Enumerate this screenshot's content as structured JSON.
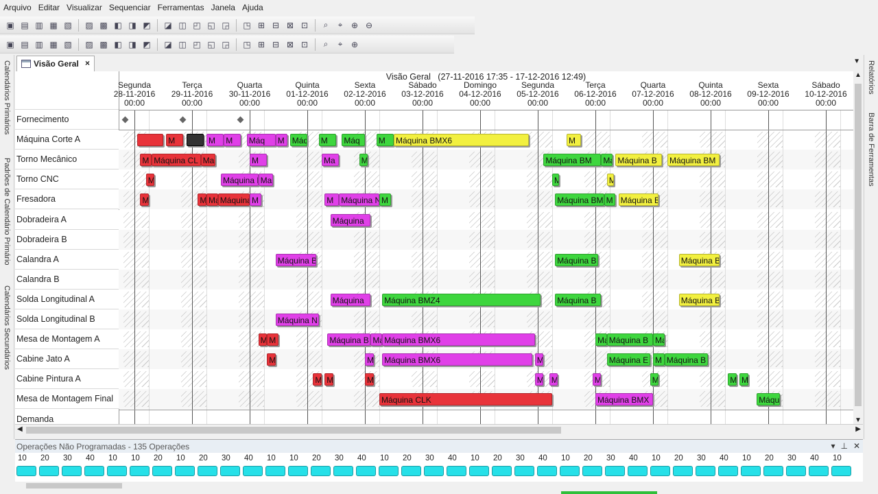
{
  "menu": [
    "Arquivo",
    "Editar",
    "Visualizar",
    "Sequenciar",
    "Ferramentas",
    "Janela",
    "Ajuda"
  ],
  "toolbar1": [
    "open-icon",
    "paste-icon",
    "save-icon",
    "print-icon",
    "check-icon",
    "undo-icon",
    "redo-icon",
    "grid-icon",
    "table-icon",
    "chart-icon",
    "list-icon",
    "report-icon",
    "window-icon",
    "move-icon",
    "move2-icon",
    "binoculars-icon",
    "help-icon",
    "doc-icon",
    "calendar-icon",
    "calendar2-icon",
    "zoom-in-icon",
    "zoom-out-icon",
    "zoom-fit-icon",
    "zoom-time-icon"
  ],
  "toolbar2": [
    "tool1-icon",
    "tool2-icon",
    "tool3-icon",
    "tool4-icon",
    "tool5-icon",
    "tool6-icon",
    "bar-icon",
    "arrows-icon",
    "box-icon",
    "arrow-right-icon",
    "cursor-icon",
    "cursor2-icon",
    "wand-icon",
    "layers-icon",
    "layers2-icon",
    "book-icon",
    "link-icon",
    "check2-icon",
    "list2-icon",
    "page-icon",
    "lock-icon",
    "copy-icon",
    "copy2-icon"
  ],
  "left_tabs": [
    "Calendários Primários",
    "Padrões de Calendário Primário",
    "Calendários Secundários"
  ],
  "right_tabs": [
    "Relatórios",
    "Barra de Ferramentas"
  ],
  "doc_tab": {
    "label": "Visão Geral",
    "close": "×"
  },
  "header": {
    "title": "Visão Geral",
    "range": "(27-11-2016 17:35 - 17-12-2016 12:49)"
  },
  "days": [
    {
      "name": "Segunda",
      "date": "28-11-2016",
      "time": "00:00"
    },
    {
      "name": "Terça",
      "date": "29-11-2016",
      "time": "00:00"
    },
    {
      "name": "Quarta",
      "date": "30-11-2016",
      "time": "00:00"
    },
    {
      "name": "Quinta",
      "date": "01-12-2016",
      "time": "00:00"
    },
    {
      "name": "Sexta",
      "date": "02-12-2016",
      "time": "00:00"
    },
    {
      "name": "Sábado",
      "date": "03-12-2016",
      "time": "00:00"
    },
    {
      "name": "Domingo",
      "date": "04-12-2016",
      "time": "00:00"
    },
    {
      "name": "Segunda",
      "date": "05-12-2016",
      "time": "00:00"
    },
    {
      "name": "Terça",
      "date": "06-12-2016",
      "time": "00:00"
    },
    {
      "name": "Quarta",
      "date": "07-12-2016",
      "time": "00:00"
    },
    {
      "name": "Quinta",
      "date": "08-12-2016",
      "time": "00:00"
    },
    {
      "name": "Sexta",
      "date": "09-12-2016",
      "time": "00:00"
    },
    {
      "name": "Sábado",
      "date": "10-12-2016",
      "time": "00:00"
    }
  ],
  "resources": [
    "Fornecimento",
    "Máquina Corte A",
    "Torno Mecânico",
    "Torno CNC",
    "Fresadora",
    "Dobradeira A",
    "Dobradeira B",
    "Calandra A",
    "Calandra B",
    "Solda Longitudinal A",
    "Solda Longitudinal B",
    "Mesa de Montagem A",
    "Cabine Jato A",
    "Cabine Pintura A",
    "Mesa de Montagem Final",
    "Demanda"
  ],
  "colors": {
    "red": "#e8333a",
    "magenta": "#e040e8",
    "green": "#3ed63e",
    "yellow": "#f2f040",
    "dark": "#333333"
  },
  "bars": [
    {
      "row": 1,
      "day": 0.55,
      "len": 0.45,
      "color": "red",
      "label": ""
    },
    {
      "row": 1,
      "day": 1.05,
      "len": 0.3,
      "color": "red",
      "label": "M"
    },
    {
      "row": 1,
      "day": 1.4,
      "len": 0.3,
      "color": "dark",
      "label": ""
    },
    {
      "row": 1,
      "day": 1.75,
      "len": 0.3,
      "color": "magenta",
      "label": "M"
    },
    {
      "row": 1,
      "day": 2.05,
      "len": 0.3,
      "color": "magenta",
      "label": "M"
    },
    {
      "row": 1,
      "day": 2.45,
      "len": 0.5,
      "color": "magenta",
      "label": "Máq"
    },
    {
      "row": 1,
      "day": 2.95,
      "len": 0.2,
      "color": "magenta",
      "label": "M"
    },
    {
      "row": 1,
      "day": 3.2,
      "len": 0.3,
      "color": "green",
      "label": "Máq"
    },
    {
      "row": 1,
      "day": 3.7,
      "len": 0.3,
      "color": "green",
      "label": "M"
    },
    {
      "row": 1,
      "day": 4.1,
      "len": 0.4,
      "color": "green",
      "label": "Máq"
    },
    {
      "row": 1,
      "day": 4.7,
      "len": 0.3,
      "color": "green",
      "label": "M"
    },
    {
      "row": 1,
      "day": 5.0,
      "len": 2.35,
      "color": "yellow",
      "label": "Máquina BMX6"
    },
    {
      "row": 1,
      "day": 8.0,
      "len": 0.25,
      "color": "yellow",
      "label": "M"
    },
    {
      "row": 2,
      "day": 0.6,
      "len": 0.2,
      "color": "red",
      "label": "M"
    },
    {
      "row": 2,
      "day": 0.8,
      "len": 0.85,
      "color": "red",
      "label": "Máquina CL"
    },
    {
      "row": 2,
      "day": 1.65,
      "len": 0.25,
      "color": "red",
      "label": "Ma"
    },
    {
      "row": 2,
      "day": 2.5,
      "len": 0.3,
      "color": "magenta",
      "label": "M"
    },
    {
      "row": 2,
      "day": 3.75,
      "len": 0.3,
      "color": "magenta",
      "label": "Ma"
    },
    {
      "row": 2,
      "day": 4.4,
      "len": 0.15,
      "color": "green",
      "label": "M"
    },
    {
      "row": 2,
      "day": 7.6,
      "len": 1.0,
      "color": "green",
      "label": "Máquina BM"
    },
    {
      "row": 2,
      "day": 8.6,
      "len": 0.2,
      "color": "green",
      "label": "Ma"
    },
    {
      "row": 2,
      "day": 8.85,
      "len": 0.8,
      "color": "yellow",
      "label": "Máquina B"
    },
    {
      "row": 2,
      "day": 9.75,
      "len": 0.9,
      "color": "yellow",
      "label": "Máquina BM"
    },
    {
      "row": 3,
      "day": 0.7,
      "len": 0.15,
      "color": "red",
      "label": "M"
    },
    {
      "row": 3,
      "day": 2.0,
      "len": 0.65,
      "color": "magenta",
      "label": "Máquina B"
    },
    {
      "row": 3,
      "day": 2.65,
      "len": 0.25,
      "color": "magenta",
      "label": "Ma"
    },
    {
      "row": 3,
      "day": 7.75,
      "len": 0.1,
      "color": "green",
      "label": "M"
    },
    {
      "row": 3,
      "day": 8.7,
      "len": 0.1,
      "color": "yellow",
      "label": "M"
    },
    {
      "row": 4,
      "day": 0.6,
      "len": 0.15,
      "color": "red",
      "label": "M"
    },
    {
      "row": 4,
      "day": 1.6,
      "len": 0.15,
      "color": "red",
      "label": "M"
    },
    {
      "row": 4,
      "day": 1.75,
      "len": 0.2,
      "color": "red",
      "label": "Ma"
    },
    {
      "row": 4,
      "day": 1.95,
      "len": 0.55,
      "color": "red",
      "label": "Máquina C"
    },
    {
      "row": 4,
      "day": 2.5,
      "len": 0.2,
      "color": "magenta",
      "label": "M"
    },
    {
      "row": 4,
      "day": 3.8,
      "len": 0.25,
      "color": "magenta",
      "label": "M"
    },
    {
      "row": 4,
      "day": 4.05,
      "len": 0.7,
      "color": "magenta",
      "label": "Máquina N"
    },
    {
      "row": 4,
      "day": 4.75,
      "len": 0.2,
      "color": "green",
      "label": "M"
    },
    {
      "row": 4,
      "day": 7.8,
      "len": 0.85,
      "color": "green",
      "label": "Máquina BM"
    },
    {
      "row": 4,
      "day": 8.65,
      "len": 0.2,
      "color": "green",
      "label": "M"
    },
    {
      "row": 4,
      "day": 8.9,
      "len": 0.7,
      "color": "yellow",
      "label": "Máquina B"
    },
    {
      "row": 5,
      "day": 3.9,
      "len": 0.7,
      "color": "magenta",
      "label": "Máquina"
    },
    {
      "row": 7,
      "day": 2.95,
      "len": 0.7,
      "color": "magenta",
      "label": "Máquina B"
    },
    {
      "row": 7,
      "day": 7.8,
      "len": 0.75,
      "color": "green",
      "label": "Máquina B"
    },
    {
      "row": 7,
      "day": 9.95,
      "len": 0.7,
      "color": "yellow",
      "label": "Máquina B"
    },
    {
      "row": 9,
      "day": 3.9,
      "len": 0.7,
      "color": "magenta",
      "label": "Máquina"
    },
    {
      "row": 9,
      "day": 4.8,
      "len": 2.75,
      "color": "green",
      "label": "Máquina BMZ4"
    },
    {
      "row": 9,
      "day": 7.8,
      "len": 0.8,
      "color": "green",
      "label": "Máquina B"
    },
    {
      "row": 9,
      "day": 9.95,
      "len": 0.7,
      "color": "yellow",
      "label": "Máquina B"
    },
    {
      "row": 10,
      "day": 2.95,
      "len": 0.75,
      "color": "magenta",
      "label": "Máquina N"
    },
    {
      "row": 11,
      "day": 2.65,
      "len": 0.15,
      "color": "red",
      "label": "M"
    },
    {
      "row": 11,
      "day": 2.8,
      "len": 0.2,
      "color": "red",
      "label": "M"
    },
    {
      "row": 11,
      "day": 3.85,
      "len": 0.75,
      "color": "magenta",
      "label": "Máquina B"
    },
    {
      "row": 11,
      "day": 4.6,
      "len": 0.2,
      "color": "magenta",
      "label": "Ma"
    },
    {
      "row": 11,
      "day": 4.8,
      "len": 2.65,
      "color": "magenta",
      "label": "Máquina BMX6"
    },
    {
      "row": 11,
      "day": 8.5,
      "len": 0.2,
      "color": "green",
      "label": "Ma"
    },
    {
      "row": 11,
      "day": 8.7,
      "len": 0.8,
      "color": "green",
      "label": "Máquina B"
    },
    {
      "row": 11,
      "day": 9.5,
      "len": 0.2,
      "color": "green",
      "label": "Ma"
    },
    {
      "row": 12,
      "day": 2.8,
      "len": 0.15,
      "color": "red",
      "label": "M"
    },
    {
      "row": 12,
      "day": 4.5,
      "len": 0.15,
      "color": "magenta",
      "label": "M"
    },
    {
      "row": 12,
      "day": 4.8,
      "len": 2.6,
      "color": "magenta",
      "label": "Máquina BMX6"
    },
    {
      "row": 12,
      "day": 7.45,
      "len": 0.15,
      "color": "magenta",
      "label": "M"
    },
    {
      "row": 12,
      "day": 8.7,
      "len": 0.75,
      "color": "green",
      "label": "Máquina E"
    },
    {
      "row": 12,
      "day": 9.5,
      "len": 0.2,
      "color": "green",
      "label": "M"
    },
    {
      "row": 12,
      "day": 9.7,
      "len": 0.75,
      "color": "green",
      "label": "Máquina B"
    },
    {
      "row": 13,
      "day": 3.6,
      "len": 0.15,
      "color": "red",
      "label": "M"
    },
    {
      "row": 13,
      "day": 3.8,
      "len": 0.15,
      "color": "red",
      "label": "M"
    },
    {
      "row": 13,
      "day": 4.5,
      "len": 0.15,
      "color": "red",
      "label": "M"
    },
    {
      "row": 13,
      "day": 7.45,
      "len": 0.15,
      "color": "magenta",
      "label": "M"
    },
    {
      "row": 13,
      "day": 7.7,
      "len": 0.15,
      "color": "magenta",
      "label": "M"
    },
    {
      "row": 13,
      "day": 8.45,
      "len": 0.15,
      "color": "magenta",
      "label": "M"
    },
    {
      "row": 13,
      "day": 9.45,
      "len": 0.15,
      "color": "green",
      "label": "M"
    },
    {
      "row": 13,
      "day": 10.8,
      "len": 0.15,
      "color": "green",
      "label": "M"
    },
    {
      "row": 13,
      "day": 11.0,
      "len": 0.15,
      "color": "green",
      "label": "M"
    },
    {
      "row": 14,
      "day": 4.75,
      "len": 3.0,
      "color": "red",
      "label": "Máquina CLK"
    },
    {
      "row": 14,
      "day": 8.5,
      "len": 1.0,
      "color": "magenta",
      "label": "Máquina BMX"
    },
    {
      "row": 14,
      "day": 11.3,
      "len": 0.4,
      "color": "green",
      "label": "Máqu"
    }
  ],
  "unscheduled": {
    "title": "Operações Não Programadas - 135 Operações",
    "count": 135,
    "ticks": [
      "10",
      "20",
      "30",
      "40",
      "10",
      "10",
      "20",
      "10",
      "20",
      "30",
      "40",
      "10",
      "10",
      "20",
      "30",
      "40",
      "10",
      "20",
      "30",
      "40",
      "10",
      "20",
      "30",
      "40",
      "10",
      "20",
      "30",
      "40",
      "10",
      "20",
      "30",
      "40",
      "10",
      "20",
      "30",
      "40",
      "10"
    ]
  },
  "panel_controls": [
    "▾",
    "⊥",
    "✕"
  ]
}
